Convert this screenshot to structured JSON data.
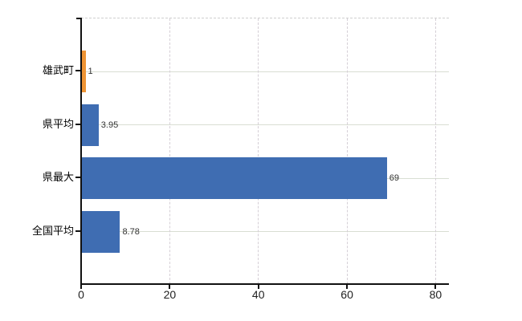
{
  "chart_data": {
    "type": "bar",
    "orientation": "horizontal",
    "title": "",
    "xlabel": "",
    "ylabel": "",
    "categories": [
      "雄武町",
      "県平均",
      "県最大",
      "全国平均"
    ],
    "values": [
      1,
      3.95,
      69,
      8.78
    ],
    "value_labels": [
      "1",
      "3.95",
      "69",
      "8.78"
    ],
    "bar_colors": [
      "#ee9435",
      "#3f6db2",
      "#3f6db2",
      "#3f6db2"
    ],
    "xticks": [
      0,
      20,
      40,
      60,
      80
    ],
    "xtick_labels": [
      "0",
      "20",
      "40",
      "60",
      "80"
    ],
    "xlim": [
      0,
      83
    ],
    "grid": {
      "horizontal": "solid",
      "vertical": "dashed",
      "top_border": "dashed"
    },
    "legend": "none"
  },
  "colors": {
    "bar_orange": "#ee9435",
    "bar_blue": "#3f6db2",
    "axis": "#111111",
    "hgrid": "#d9ded3",
    "vgrid": "#d5cfd6",
    "background": "#ffffff"
  }
}
